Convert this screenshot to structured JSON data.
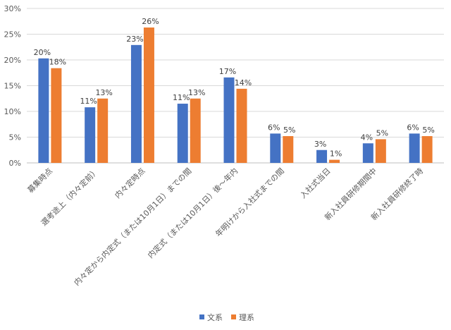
{
  "chart_data": {
    "type": "bar",
    "categories": [
      "募集時点",
      "選考途上（内々定前）",
      "内々定時点",
      "内々定から内定式（または10月1日）までの間",
      "内定式（または10月1日）後～年内",
      "年明けから入社式までの間",
      "入社式当日",
      "新入社員研修期間中",
      "新入社員研修終了時"
    ],
    "series": [
      {
        "name": "文系",
        "color": "#4472c4",
        "values": [
          20.3,
          10.8,
          22.9,
          11.5,
          16.6,
          5.7,
          2.5,
          3.8,
          5.7
        ],
        "labels": [
          "20%",
          "11%",
          "23%",
          "11%",
          "17%",
          "6%",
          "3%",
          "4%",
          "6%"
        ]
      },
      {
        "name": "理系",
        "color": "#ed7d31",
        "values": [
          18.4,
          12.5,
          26.3,
          12.5,
          14.4,
          5.2,
          0.6,
          4.6,
          5.2
        ],
        "labels": [
          "18%",
          "13%",
          "26%",
          "13%",
          "14%",
          "5%",
          "1%",
          "5%",
          "5%"
        ]
      }
    ],
    "ylim": [
      0,
      30
    ],
    "yticks": [
      "0%",
      "5%",
      "10%",
      "15%",
      "20%",
      "25%",
      "30%"
    ],
    "grid": true,
    "legend_position": "bottom"
  }
}
